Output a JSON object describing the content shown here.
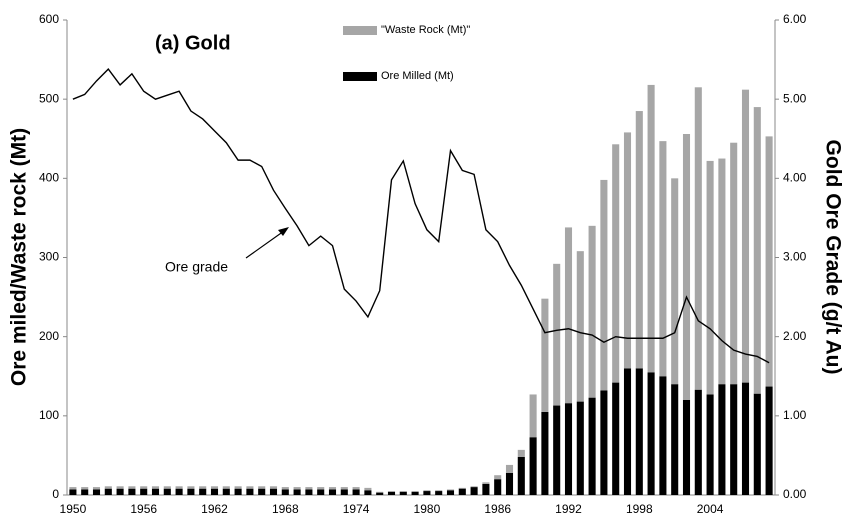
{
  "chart_data": {
    "type": "bar",
    "title": "(a) Gold",
    "ylabel": "Ore miled/Waste rock (Mt)",
    "y2label": "Gold Ore Grade (g/t Au)",
    "annotation": "Ore grade",
    "stacked": true,
    "categories": [
      "1950",
      null,
      null,
      null,
      null,
      null,
      "1956",
      null,
      null,
      null,
      null,
      null,
      "1962",
      null,
      null,
      null,
      null,
      null,
      "1968",
      null,
      null,
      null,
      null,
      null,
      "1974",
      null,
      null,
      null,
      null,
      null,
      "1980",
      null,
      null,
      null,
      null,
      null,
      "1986",
      null,
      null,
      null,
      null,
      null,
      "1992",
      null,
      null,
      null,
      null,
      null,
      "1998",
      null,
      null,
      null,
      null,
      null,
      "2004",
      null,
      null,
      null,
      null,
      null
    ],
    "series": [
      {
        "name": "Ore Milled (Mt)",
        "type": "bar",
        "color": "#000000",
        "values": [
          7,
          7,
          7,
          8,
          8,
          8,
          8,
          8,
          8,
          8,
          8,
          8,
          8,
          8,
          8,
          8,
          8,
          8,
          7,
          7,
          7,
          7,
          7,
          7,
          7,
          6,
          3,
          4,
          4,
          4,
          5,
          5,
          6,
          8,
          10,
          14,
          20,
          28,
          48,
          73,
          105,
          113,
          116,
          118,
          123,
          132,
          142,
          160,
          160,
          155,
          150,
          140,
          120,
          133,
          127,
          140,
          140,
          142,
          128,
          137
        ]
      },
      {
        "name": "\"Waste Rock (Mt)\"",
        "type": "bar",
        "color": "#a6a6a6",
        "values": [
          3,
          3,
          3,
          3,
          3,
          3,
          3,
          3,
          3,
          3,
          3,
          3,
          3,
          3,
          3,
          3,
          3,
          3,
          3,
          3,
          3,
          3,
          3,
          3,
          3,
          3,
          1,
          1,
          1,
          1,
          1,
          1,
          1,
          1,
          1,
          2,
          5,
          10,
          9,
          54,
          143,
          179,
          222,
          190,
          217,
          266,
          301,
          298,
          325,
          363,
          297,
          260,
          336,
          382,
          295,
          285,
          305,
          370,
          362,
          316
        ]
      },
      {
        "name": "Ore grade",
        "type": "line",
        "axis": "y2",
        "color": "#000000",
        "values": [
          5.0,
          5.06,
          5.23,
          5.38,
          5.18,
          5.32,
          5.1,
          5.0,
          5.05,
          5.1,
          4.85,
          4.75,
          4.6,
          4.45,
          4.23,
          4.23,
          4.15,
          3.85,
          3.62,
          3.4,
          3.15,
          3.27,
          3.15,
          2.6,
          2.45,
          2.25,
          2.58,
          3.98,
          4.22,
          3.68,
          3.35,
          3.2,
          4.35,
          4.1,
          4.05,
          3.35,
          3.2,
          2.9,
          2.65,
          2.35,
          2.05,
          2.08,
          2.1,
          2.05,
          2.02,
          1.93,
          2.0,
          1.98,
          1.98,
          1.98,
          1.98,
          2.05,
          2.5,
          2.2,
          2.1,
          1.95,
          1.83,
          1.78,
          1.75,
          1.67
        ]
      }
    ],
    "ylim": [
      0,
      600
    ],
    "yticks": [
      0,
      100,
      200,
      300,
      400,
      500,
      600
    ],
    "y2lim": [
      0,
      6
    ],
    "y2ticks": [
      {
        "value": 0,
        "label": "0.00"
      },
      {
        "value": 1,
        "label": "1.00"
      },
      {
        "value": 2,
        "label": "2.00"
      },
      {
        "value": 3,
        "label": "3.00"
      },
      {
        "value": 4,
        "label": "4.00"
      },
      {
        "value": 5,
        "label": "5.00"
      },
      {
        "value": 6,
        "label": "6.00"
      }
    ]
  }
}
